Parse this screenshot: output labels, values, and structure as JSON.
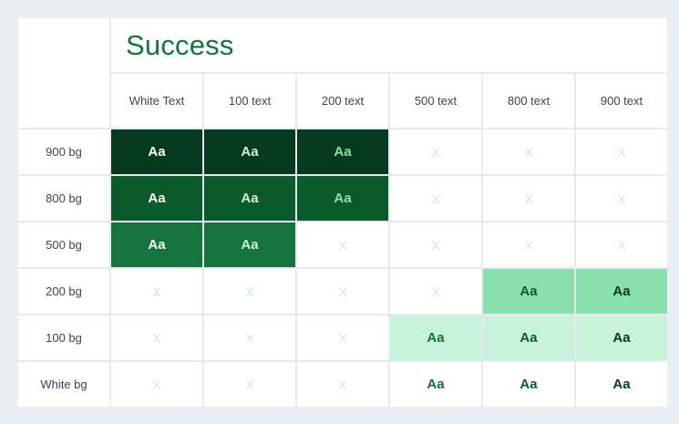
{
  "title": "Success",
  "columns": [
    "White Text",
    "100 text",
    "200 text",
    "500 text",
    "800 text",
    "900 text"
  ],
  "text_colors": [
    "#ffffff",
    "#c8f3da",
    "#8ae0ad",
    "#16733d",
    "#0b5a2c",
    "#053a1e"
  ],
  "rows": [
    {
      "label": "900 bg",
      "bg": "#053a1e",
      "cells": [
        "Aa",
        "Aa",
        "Aa",
        "X",
        "X",
        "X"
      ]
    },
    {
      "label": "800 bg",
      "bg": "#0b5a2c",
      "cells": [
        "Aa",
        "Aa",
        "Aa",
        "X",
        "X",
        "X"
      ]
    },
    {
      "label": "500 bg",
      "bg": "#16733d",
      "cells": [
        "Aa",
        "Aa",
        "X",
        "X",
        "X",
        "X"
      ]
    },
    {
      "label": "200 bg",
      "bg": "#8ae0ad",
      "cells": [
        "X",
        "X",
        "X",
        "X",
        "Aa",
        "Aa"
      ]
    },
    {
      "label": "100 bg",
      "bg": "#c8f3da",
      "cells": [
        "X",
        "X",
        "X",
        "Aa",
        "Aa",
        "Aa"
      ]
    },
    {
      "label": "White bg",
      "bg": "#ffffff",
      "cells": [
        "X",
        "X",
        "X",
        "Aa",
        "Aa",
        "Aa"
      ]
    }
  ],
  "colors": {
    "fail_mark": "#cfe9dc",
    "empty_cell": "#ffffff"
  }
}
